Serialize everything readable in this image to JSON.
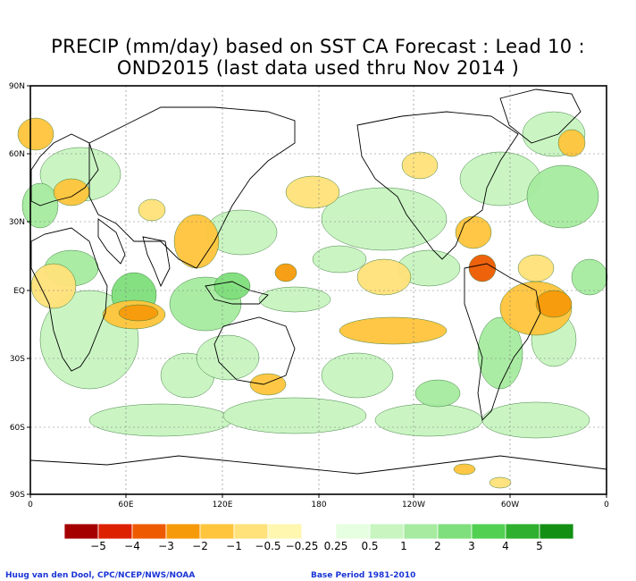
{
  "title": {
    "line1": "PRECIP (mm/day) based on SST CA Forecast : Lead 10 :",
    "line2": "OND2015 (last data used thru Nov 2014 )"
  },
  "lat_labels": [
    "90N",
    "60N",
    "30N",
    "EQ",
    "30S",
    "60S",
    "90S"
  ],
  "lon_labels": [
    "0",
    "60E",
    "120E",
    "180",
    "120W",
    "60W",
    "0"
  ],
  "colorbar": {
    "labels": [
      "−5",
      "−4",
      "−3",
      "−2",
      "−1",
      "−0.5",
      "−0.25",
      "0.25",
      "0.5",
      "1",
      "2",
      "3",
      "4",
      "5"
    ],
    "colors": [
      "#a50000",
      "#dd2000",
      "#ee5a00",
      "#f79a0a",
      "#ffc53c",
      "#ffe27a",
      "#fff6b0",
      "#ffffff",
      "#e6ffe0",
      "#c8f5c0",
      "#a6eba0",
      "#7fdf7c",
      "#52d052",
      "#2fb02f",
      "#139013"
    ]
  },
  "credits": {
    "left": "Huug van den Dool, CPC/NCEP/NWS/NOAA",
    "right": "Base Period 1981-2010"
  }
}
